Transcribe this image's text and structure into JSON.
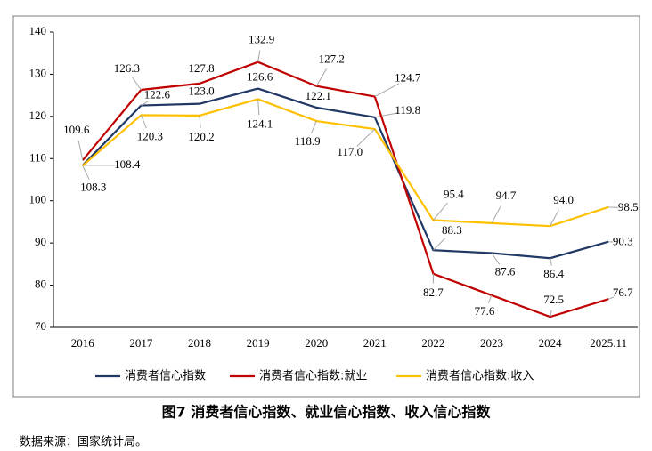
{
  "chart_data": {
    "type": "line",
    "title": "图7 消费者信心指数、就业信心指数、收入信心指数",
    "source": "数据来源：国家统计局。",
    "categories": [
      "2016",
      "2017",
      "2018",
      "2019",
      "2020",
      "2021",
      "2022",
      "2023",
      "2024",
      "2025.11"
    ],
    "series": [
      {
        "name": "消费者信心指数",
        "color": "#1f3864",
        "values": [
          108.4,
          122.6,
          123.0,
          126.6,
          122.1,
          119.8,
          88.3,
          87.6,
          86.4,
          90.3
        ],
        "value_labels": [
          "108.4",
          "122.6",
          "123.0",
          "126.6",
          "122.1",
          "119.8",
          "88.3",
          "87.6",
          "86.4",
          "90.3"
        ]
      },
      {
        "name": "消费者信心指数:就业",
        "color": "#c00000",
        "values": [
          109.6,
          126.3,
          127.8,
          132.9,
          127.2,
          124.7,
          82.7,
          77.6,
          72.5,
          76.7
        ],
        "value_labels": [
          "109.6",
          "126.3",
          "127.8",
          "132.9",
          "127.2",
          "124.7",
          "82.7",
          "77.6",
          "72.5",
          "76.7"
        ]
      },
      {
        "name": "消费者信心指数:收入",
        "color": "#ffc000",
        "values": [
          108.3,
          120.3,
          120.2,
          124.1,
          118.9,
          117.0,
          95.4,
          94.7,
          94.0,
          98.5
        ],
        "value_labels": [
          "108.3",
          "120.3",
          "120.2",
          "124.1",
          "118.9",
          "117.0",
          "95.4",
          "94.7",
          "94.0",
          "98.5"
        ]
      }
    ],
    "ylim": [
      70,
      140
    ],
    "yticks": [
      70,
      80,
      90,
      100,
      110,
      120,
      130,
      140
    ],
    "grid": false,
    "legend": "bottom"
  }
}
